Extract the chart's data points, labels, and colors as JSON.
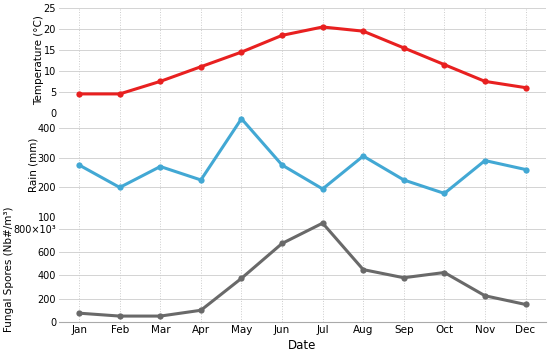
{
  "months": [
    "Jan",
    "Feb",
    "Mar",
    "Apr",
    "May",
    "Jun",
    "Jul",
    "Aug",
    "Sep",
    "Oct",
    "Nov",
    "Dec"
  ],
  "temperature": [
    4.5,
    4.5,
    7.5,
    11.0,
    14.5,
    18.5,
    20.5,
    19.5,
    15.5,
    11.5,
    7.5,
    6.0
  ],
  "rain": [
    275,
    200,
    270,
    225,
    430,
    275,
    195,
    305,
    225,
    180,
    290,
    260
  ],
  "spores": [
    75,
    50,
    50,
    100,
    375,
    675,
    850,
    450,
    380,
    425,
    225,
    150
  ],
  "temp_color": "#e82020",
  "rain_color": "#42a8d4",
  "spores_color": "#696969",
  "grid_color": "#cccccc",
  "bg_color": "#ffffff",
  "xlabel": "Date",
  "ylabel_temp": "Temperature (°C)",
  "ylabel_rain": "Rain (mm)",
  "ylabel_spores": "Fungal Spores (Nb#/m³)"
}
